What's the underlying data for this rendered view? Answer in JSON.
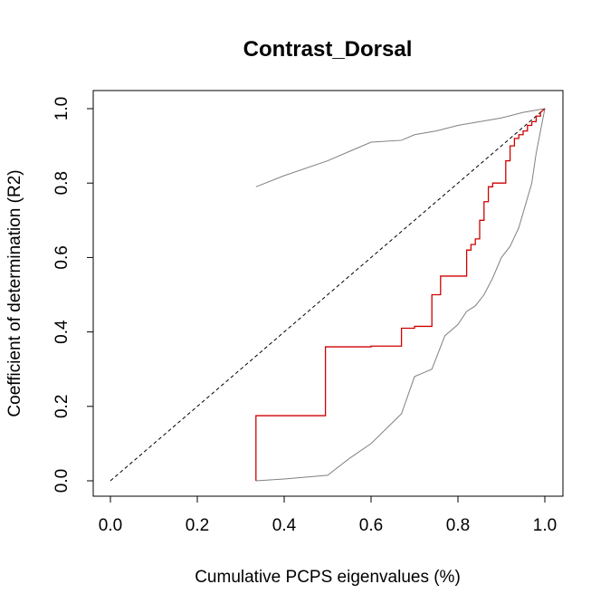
{
  "chart_data": {
    "type": "line",
    "title": "Contrast_Dorsal",
    "xlabel": "Cumulative PCPS eigenvalues (%)",
    "ylabel": "Coefficient of determination (R2)",
    "xlim": [
      0.0,
      1.0
    ],
    "ylim": [
      0.0,
      1.0
    ],
    "xticks": [
      "0.0",
      "0.2",
      "0.4",
      "0.6",
      "0.8",
      "1.0"
    ],
    "yticks": [
      "0.0",
      "0.2",
      "0.4",
      "0.6",
      "0.8",
      "1.0"
    ],
    "grid": false,
    "legend": "none",
    "series": [
      {
        "role": "reference-diagonal",
        "style": "dashed",
        "color": "#000000",
        "x": [
          0.0,
          1.0
        ],
        "y": [
          0.0,
          1.0
        ]
      },
      {
        "role": "upper-envelope",
        "style": "solid",
        "color": "#808080",
        "x": [
          0.335,
          0.4,
          0.5,
          0.55,
          0.6,
          0.67,
          0.7,
          0.75,
          0.8,
          0.85,
          0.9,
          0.95,
          1.0
        ],
        "y": [
          0.79,
          0.82,
          0.86,
          0.885,
          0.91,
          0.915,
          0.93,
          0.94,
          0.955,
          0.965,
          0.975,
          0.99,
          1.0
        ]
      },
      {
        "role": "lower-envelope",
        "style": "solid",
        "color": "#808080",
        "x": [
          0.335,
          0.4,
          0.5,
          0.55,
          0.6,
          0.67,
          0.7,
          0.72,
          0.74,
          0.77,
          0.8,
          0.82,
          0.84,
          0.86,
          0.88,
          0.9,
          0.92,
          0.94,
          0.96,
          0.97,
          0.98,
          1.0
        ],
        "y": [
          0.0,
          0.005,
          0.015,
          0.06,
          0.1,
          0.18,
          0.28,
          0.29,
          0.3,
          0.39,
          0.42,
          0.455,
          0.47,
          0.5,
          0.545,
          0.6,
          0.63,
          0.68,
          0.76,
          0.8,
          0.88,
          1.0
        ]
      },
      {
        "role": "observed",
        "style": "step",
        "color": "#d00000",
        "x": [
          0.335,
          0.335,
          0.495,
          0.495,
          0.6,
          0.6,
          0.67,
          0.67,
          0.7,
          0.7,
          0.74,
          0.74,
          0.76,
          0.76,
          0.82,
          0.82,
          0.83,
          0.83,
          0.84,
          0.84,
          0.85,
          0.85,
          0.86,
          0.86,
          0.87,
          0.87,
          0.88,
          0.88,
          0.91,
          0.91,
          0.92,
          0.92,
          0.93,
          0.93,
          0.94,
          0.94,
          0.95,
          0.95,
          0.96,
          0.96,
          0.97,
          0.97,
          0.98,
          0.98,
          0.99,
          0.99,
          1.0
        ],
        "y": [
          0.0,
          0.175,
          0.175,
          0.36,
          0.36,
          0.362,
          0.362,
          0.41,
          0.41,
          0.415,
          0.415,
          0.5,
          0.5,
          0.55,
          0.55,
          0.62,
          0.62,
          0.635,
          0.635,
          0.65,
          0.65,
          0.7,
          0.7,
          0.75,
          0.75,
          0.79,
          0.79,
          0.8,
          0.8,
          0.86,
          0.86,
          0.9,
          0.9,
          0.92,
          0.92,
          0.93,
          0.93,
          0.94,
          0.94,
          0.955,
          0.955,
          0.965,
          0.965,
          0.98,
          0.98,
          0.99,
          1.0
        ]
      }
    ]
  }
}
